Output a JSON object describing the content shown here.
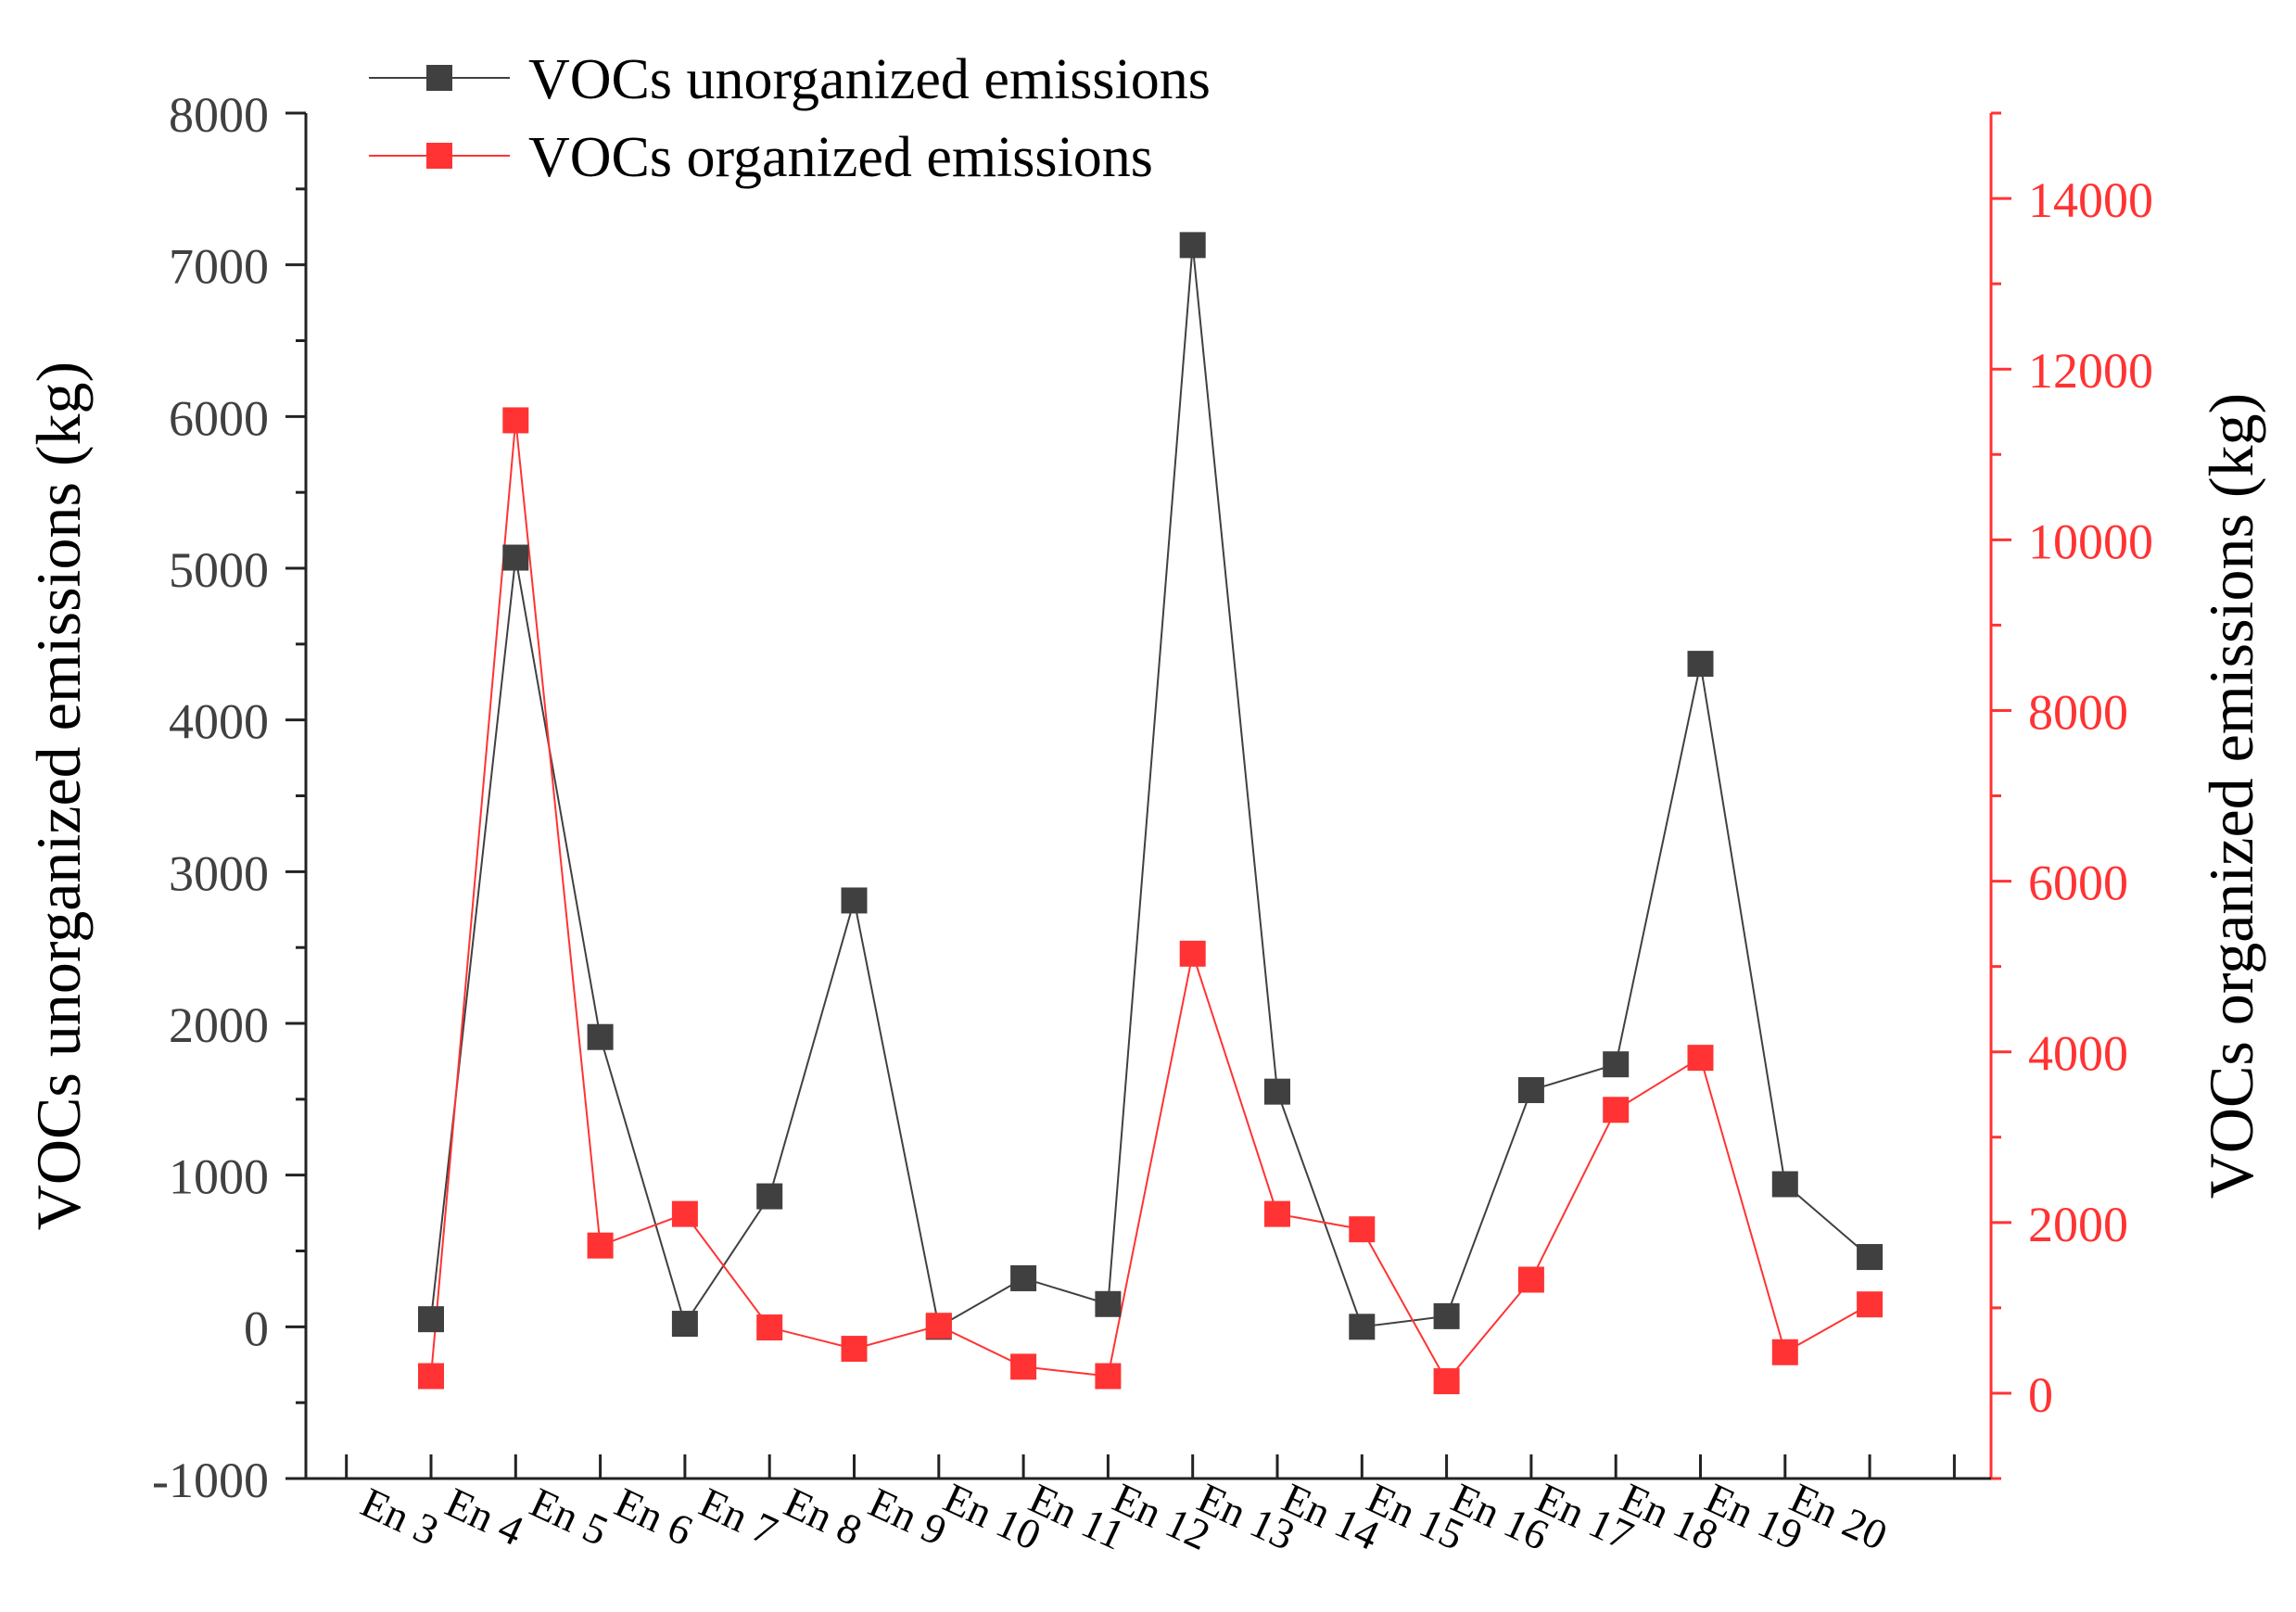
{
  "chart_data": {
    "type": "line",
    "categories": [
      "En 3",
      "En 4",
      "En 5",
      "En 6",
      "En 7",
      "En 8",
      "En 9",
      "En 10",
      "En 11",
      "En 12",
      "En 13",
      "En 14",
      "En 15",
      "En 16",
      "En 17",
      "En 18",
      "En 19",
      "En 20"
    ],
    "series": [
      {
        "name": "VOCs unorganized emissions",
        "axis": "left",
        "color": "#404040",
        "marker": "square",
        "values": [
          50,
          5070,
          1910,
          20,
          860,
          2810,
          0,
          320,
          150,
          7130,
          1550,
          0,
          70,
          1560,
          1730,
          4370,
          940,
          460
        ]
      },
      {
        "name": "VOCs organized emissions",
        "axis": "right",
        "color": "#ff3333",
        "marker": "square",
        "values": [
          200,
          11400,
          1730,
          2100,
          770,
          520,
          790,
          310,
          200,
          5150,
          2100,
          1920,
          140,
          1330,
          3320,
          3930,
          480,
          1040
        ]
      }
    ],
    "left_axis": {
      "label": "VOCs unorganized emissions (kg)",
      "ylim": [
        -1000,
        8000
      ],
      "ticks": [
        -1000,
        0,
        1000,
        2000,
        3000,
        4000,
        5000,
        6000,
        7000,
        8000
      ],
      "tick_labels": [
        "-1000",
        "0",
        "1000",
        "2000",
        "3000",
        "4000",
        "5000",
        "6000",
        "7000",
        "8000"
      ],
      "color": "#404040"
    },
    "right_axis": {
      "label": "VOCs organized emissions (kg)",
      "ylim": [
        -1000,
        15000
      ],
      "ticks": [
        0,
        2000,
        4000,
        6000,
        8000,
        10000,
        12000,
        14000
      ],
      "tick_labels": [
        "0",
        "2000",
        "4000",
        "6000",
        "8000",
        "10000",
        "12000",
        "14000"
      ],
      "color": "#ff3333"
    },
    "legend_position": "top-left",
    "grid": false
  }
}
